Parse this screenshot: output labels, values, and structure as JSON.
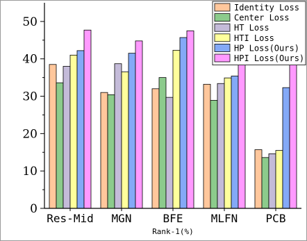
{
  "chart_data": {
    "type": "bar",
    "title": "",
    "xlabel": "Rank-1(%)",
    "ylabel": "",
    "ylim": [
      0,
      55
    ],
    "yticks": [
      0,
      10,
      20,
      30,
      40,
      50
    ],
    "grid": false,
    "legend_position": "top-right",
    "categories": [
      "Res-Mid",
      "MGN",
      "BFE",
      "MLFN",
      "PCB"
    ],
    "series": [
      {
        "name": "Identity Loss",
        "color": "#FFC79C",
        "values": [
          38.5,
          31.0,
          32.0,
          33.2,
          15.7
        ]
      },
      {
        "name": "Center Loss",
        "color": "#8CCB8C",
        "values": [
          33.6,
          30.4,
          35.0,
          28.9,
          13.6
        ]
      },
      {
        "name": "HT Loss",
        "color": "#C4BBD9",
        "values": [
          38.0,
          38.7,
          29.7,
          33.4,
          14.6
        ]
      },
      {
        "name": "HTI Loss",
        "color": "#FFFF9C",
        "values": [
          41.0,
          36.5,
          42.3,
          34.9,
          15.5
        ]
      },
      {
        "name": "HP Loss(Ours)",
        "color": "#84A9F7",
        "values": [
          42.2,
          41.5,
          45.7,
          35.4,
          32.3
        ]
      },
      {
        "name": "HPI Loss(Ours)",
        "color": "#FF99FF",
        "values": [
          47.7,
          44.8,
          47.5,
          39.4,
          38.5
        ]
      }
    ]
  }
}
